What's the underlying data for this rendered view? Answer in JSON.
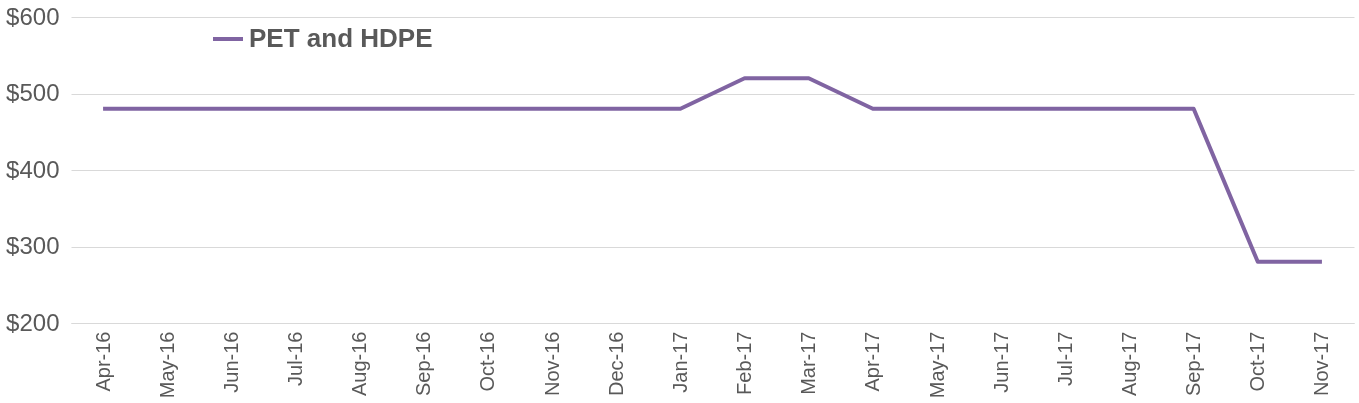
{
  "chart_data": {
    "type": "line",
    "categories": [
      "Apr-16",
      "May-16",
      "Jun-16",
      "Jul-16",
      "Aug-16",
      "Sep-16",
      "Oct-16",
      "Nov-16",
      "Dec-16",
      "Jan-17",
      "Feb-17",
      "Mar-17",
      "Apr-17",
      "May-17",
      "Jun-17",
      "Jul-17",
      "Aug-17",
      "Sep-17",
      "Oct-17",
      "Nov-17"
    ],
    "series": [
      {
        "name": "PET and HDPE",
        "color": "#8064a2",
        "values": [
          480,
          480,
          480,
          480,
          480,
          480,
          480,
          480,
          480,
          480,
          520,
          520,
          480,
          480,
          480,
          480,
          480,
          480,
          280,
          280
        ]
      }
    ],
    "ylim": [
      200,
      600
    ],
    "yticks": [
      {
        "value": 200,
        "label": "$200"
      },
      {
        "value": 300,
        "label": "$300"
      },
      {
        "value": 400,
        "label": "$400"
      },
      {
        "value": 500,
        "label": "$500"
      },
      {
        "value": 600,
        "label": "$600"
      }
    ],
    "grid": "y",
    "legend": "top left",
    "marker": "none",
    "line_style": "solid"
  }
}
